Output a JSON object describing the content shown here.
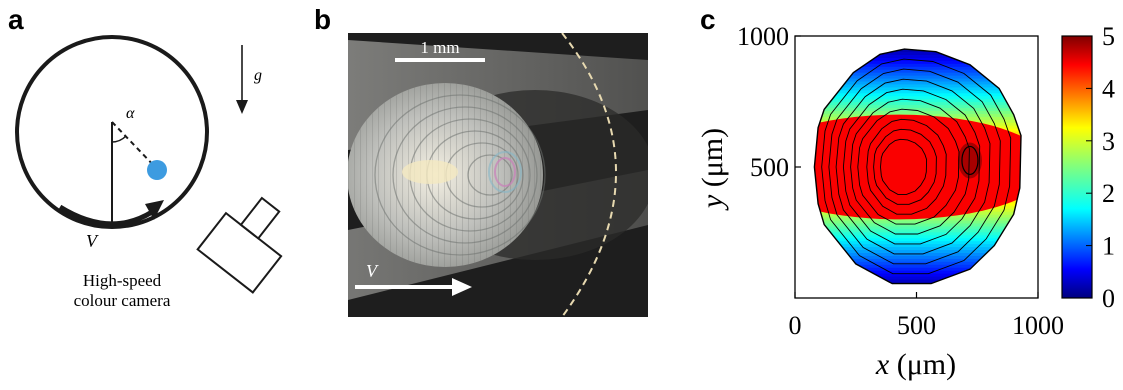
{
  "panels": {
    "a": {
      "letter": "a",
      "gravity_label": "g",
      "angle_label": "α",
      "velocity_label": "V",
      "camera_label_line1": "High-speed",
      "camera_label_line2": "colour camera",
      "colors": {
        "drop": "#3d9be0",
        "stroke": "#1a1a1a"
      }
    },
    "b": {
      "letter": "b",
      "scale_label": "1 mm",
      "velocity_label": "V",
      "colors": {
        "background": "#1e1e1e",
        "beam": "#8d8d8a",
        "dashed_circle": "#e7d9b0"
      }
    },
    "c": {
      "letter": "c",
      "x_var": "x",
      "x_unit": " (μm)",
      "y_var": "y",
      "y_unit": " (μm)",
      "x_ticks": [
        "0",
        "500",
        "1000"
      ],
      "y_ticks": [
        "1000",
        "500"
      ],
      "colorbar_ticks": [
        "5",
        "4",
        "3",
        "2",
        "1",
        "0"
      ]
    }
  },
  "chart_data": {
    "type": "heatmap",
    "title": "",
    "xlabel": "x (μm)",
    "ylabel": "y (μm)",
    "xlim": [
      0,
      1000
    ],
    "ylim": [
      0,
      1000
    ],
    "x_ticks": [
      0,
      500,
      1000
    ],
    "y_ticks": [
      500,
      1000
    ],
    "colorbar": {
      "min": 0,
      "max": 5,
      "ticks": [
        0,
        1,
        2,
        3,
        4,
        5
      ],
      "colormap": "jet"
    },
    "contour_levels": [
      0.5,
      1,
      1.5,
      2,
      2.5,
      3,
      3.5,
      4,
      4.5
    ],
    "outline_um": [
      [
        450,
        950
      ],
      [
        580,
        940
      ],
      [
        720,
        890
      ],
      [
        840,
        800
      ],
      [
        900,
        700
      ],
      [
        930,
        620
      ],
      [
        925,
        420
      ],
      [
        900,
        320
      ],
      [
        820,
        200
      ],
      [
        720,
        110
      ],
      [
        560,
        55
      ],
      [
        400,
        55
      ],
      [
        250,
        130
      ],
      [
        120,
        280
      ],
      [
        95,
        360
      ],
      [
        80,
        500
      ],
      [
        95,
        650
      ],
      [
        120,
        720
      ],
      [
        240,
        860
      ],
      [
        350,
        930
      ]
    ],
    "peak": {
      "x_um": 720,
      "y_um": 525,
      "value": 5
    },
    "grid": false,
    "legend": "colorbar-right"
  }
}
